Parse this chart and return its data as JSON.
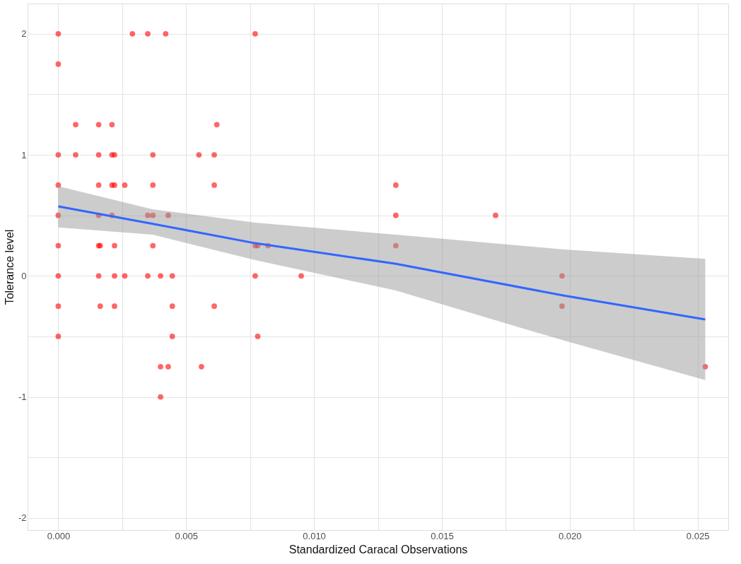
{
  "chart_data": {
    "type": "scatter",
    "xlabel": "Standardized Caracal Observations",
    "ylabel": "Tolerance level",
    "xlim": [
      -0.0012,
      0.0262
    ],
    "ylim": [
      -2.1,
      2.25
    ],
    "xticks": [
      {
        "value": 0,
        "label": "0.000"
      },
      {
        "value": 0.0025,
        "label": null
      },
      {
        "value": 0.005,
        "label": "0.005"
      },
      {
        "value": 0.0075,
        "label": null
      },
      {
        "value": 0.01,
        "label": "0.010"
      },
      {
        "value": 0.0125,
        "label": null
      },
      {
        "value": 0.015,
        "label": "0.015"
      },
      {
        "value": 0.0175,
        "label": null
      },
      {
        "value": 0.02,
        "label": "0.020"
      },
      {
        "value": 0.0225,
        "label": null
      },
      {
        "value": 0.025,
        "label": "0.025"
      }
    ],
    "yticks": [
      -2,
      {
        "value": -1.5,
        "label": null
      },
      -1,
      {
        "value": -0.5,
        "label": null
      },
      0,
      {
        "value": 0.5,
        "label": null
      },
      1,
      {
        "value": 1.5,
        "label": null
      },
      2
    ],
    "grid": true,
    "series": [
      {
        "color": "#ff0000",
        "marker": "circle",
        "x": [
          0,
          0.0029,
          0.0035,
          0.0042,
          0.0077,
          0,
          0.00068,
          0.00158,
          0.0021,
          0.0062,
          0,
          0.00068,
          0.00158,
          0.0021,
          0.0022,
          0.0037,
          0.0055,
          0.0061,
          0,
          0.00158,
          0.0021,
          0.0022,
          0.0026,
          0.0037,
          0.0061,
          0.0132,
          0,
          0.00158,
          0.0021,
          0.0035,
          0.0037,
          0.0043,
          0.0132,
          0.0171,
          0,
          0.00158,
          0.00164,
          0.0022,
          0.0037,
          0.0077,
          0.0078,
          0.0082,
          0.0132,
          0,
          0.00158,
          0.0022,
          0.0026,
          0.0035,
          0.004,
          0.00446,
          0.0077,
          0.0095,
          0.0197,
          0,
          0.00164,
          0.0022,
          0.00446,
          0.0061,
          0.0197,
          0,
          0.00446,
          0.0078,
          0.004,
          0.0043,
          0.0056,
          0.0253,
          0.004
        ],
        "values": [
          2,
          2,
          2,
          2,
          2,
          1.75,
          1.25,
          1.25,
          1.25,
          1.25,
          1,
          1,
          1,
          1,
          1,
          1,
          1,
          1,
          0.75,
          0.75,
          0.75,
          0.75,
          0.75,
          0.75,
          0.75,
          0.75,
          0.5,
          0.5,
          0.5,
          0.5,
          0.5,
          0.5,
          0.5,
          0.5,
          0.25,
          0.25,
          0.25,
          0.25,
          0.25,
          0.25,
          0.25,
          0.25,
          0.25,
          0,
          0,
          0,
          0,
          0,
          0,
          0,
          0,
          0,
          0,
          -0.25,
          -0.25,
          -0.25,
          -0.25,
          -0.25,
          -0.25,
          -0.5,
          -0.5,
          -0.5,
          -0.75,
          -0.75,
          -0.75,
          -0.75,
          -1
        ]
      },
      {
        "type": "line",
        "color": "#3366ff",
        "marker": "none",
        "x": [
          0,
          0.0037,
          0.0077,
          0.0132,
          0.0197,
          0.0253
        ],
        "values": [
          0.574,
          0.43,
          0.27,
          0.1,
          -0.16,
          -0.36
        ],
        "lower": [
          0.4,
          0.34,
          0.13,
          -0.12,
          -0.53,
          -0.86
        ],
        "upper": [
          0.74,
          0.55,
          0.44,
          0.34,
          0.22,
          0.14
        ]
      }
    ]
  }
}
